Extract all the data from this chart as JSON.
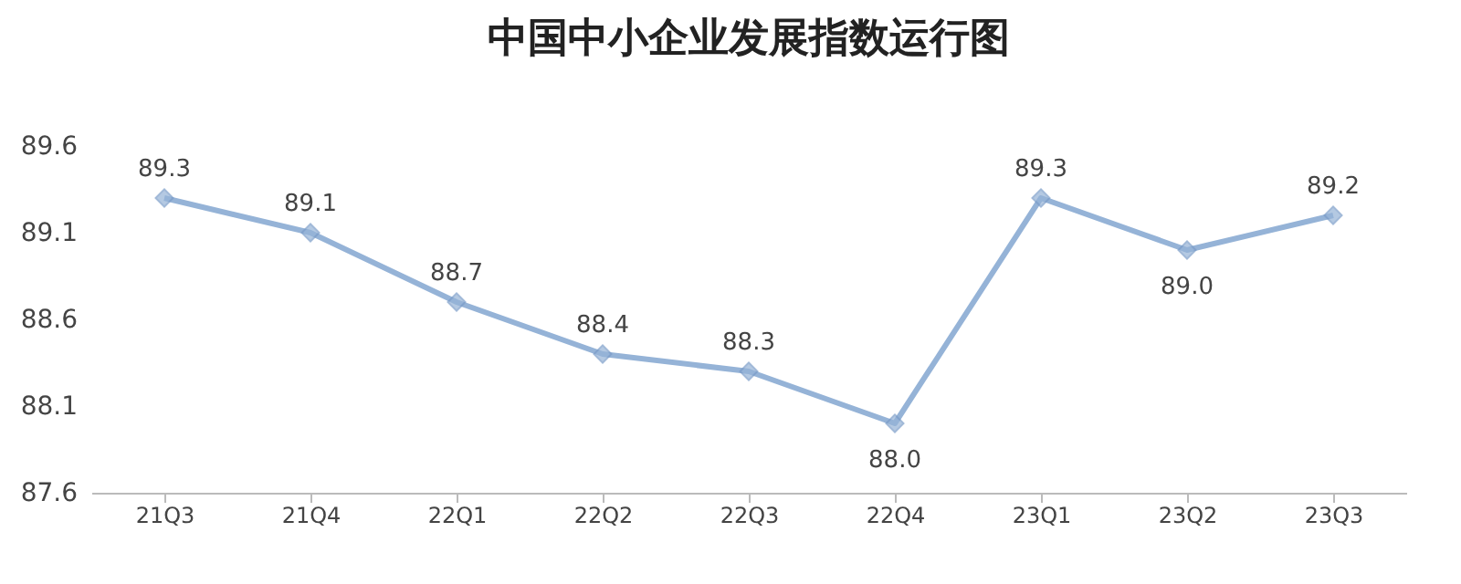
{
  "chart_data": {
    "type": "line",
    "title": "中国中小企业发展指数运行图",
    "categories": [
      "21Q3",
      "21Q4",
      "22Q1",
      "22Q2",
      "22Q3",
      "22Q4",
      "23Q1",
      "23Q2",
      "23Q3"
    ],
    "series": [
      {
        "color": "#95b3d7",
        "values": [
          89.3,
          89.1,
          88.7,
          88.4,
          88.3,
          88.0,
          89.3,
          89.0,
          89.2
        ],
        "value_labels": [
          "89.3",
          "89.1",
          "88.7",
          "88.4",
          "88.3",
          "88.0",
          "89.3",
          "89.0",
          "89.2"
        ]
      }
    ],
    "ylim": [
      87.6,
      89.6
    ],
    "yticks": [
      87.6,
      88.1,
      88.6,
      89.1,
      89.6
    ],
    "grid": false,
    "marker": "diamond",
    "line_style": "solid",
    "legend": false
  }
}
